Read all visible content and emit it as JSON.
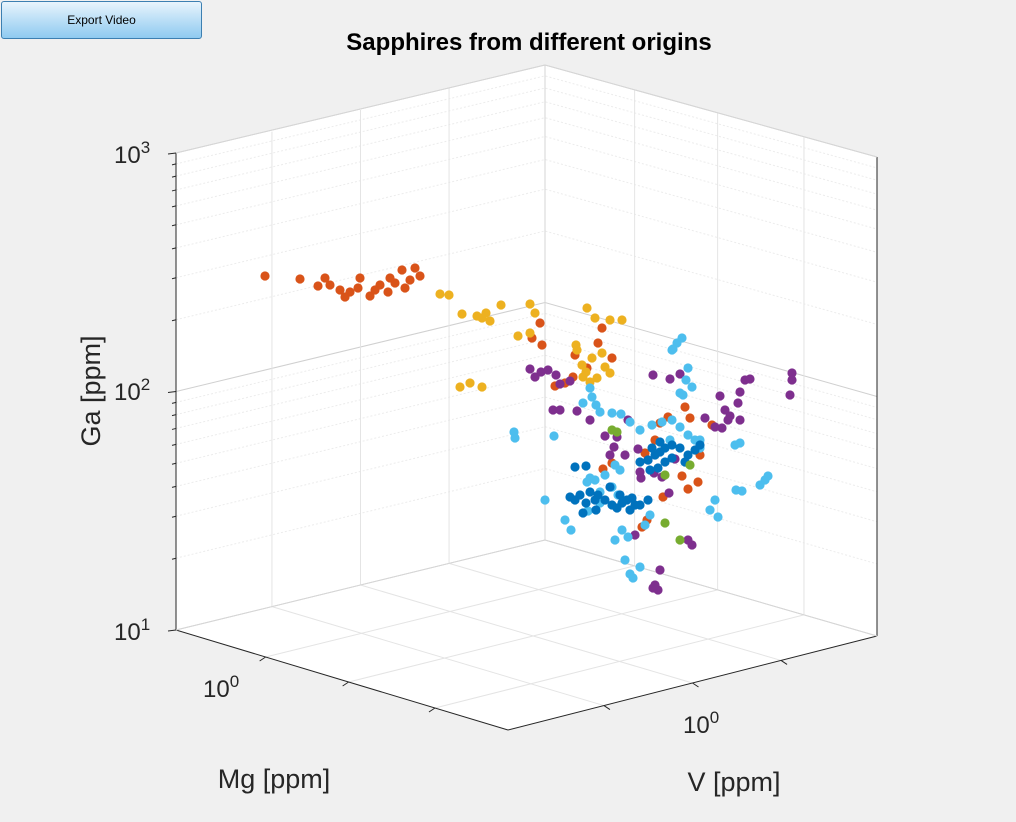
{
  "toolbar": {
    "export_label": "Export Video"
  },
  "chart_data": {
    "type": "scatter",
    "title": "Sapphires from different origins",
    "xlabel": "Mg [ppm]",
    "ylabel": "V [ppm]",
    "zlabel": "Ga [ppm]",
    "z_scale": "log",
    "zlim": [
      10,
      1000
    ],
    "z_ticks": [
      {
        "base": "10",
        "exp": "1"
      },
      {
        "base": "10",
        "exp": "2"
      },
      {
        "base": "10",
        "exp": "3"
      }
    ],
    "x_ticks": [
      {
        "base": "10",
        "exp": "0"
      }
    ],
    "y_ticks": [
      {
        "base": "10",
        "exp": "0"
      }
    ],
    "grid": true,
    "view": "3d-box",
    "series": [
      {
        "color": "#D95319",
        "points": [
          [
            265,
            276
          ],
          [
            300,
            279
          ],
          [
            318,
            286
          ],
          [
            340,
            290
          ],
          [
            358,
            288
          ],
          [
            380,
            285
          ],
          [
            395,
            283
          ],
          [
            410,
            280
          ],
          [
            420,
            276
          ],
          [
            330,
            285
          ],
          [
            350,
            292
          ],
          [
            370,
            296
          ],
          [
            388,
            292
          ],
          [
            405,
            288
          ],
          [
            390,
            278
          ],
          [
            360,
            278
          ],
          [
            375,
            290
          ],
          [
            345,
            297
          ],
          [
            325,
            278
          ],
          [
            402,
            270
          ],
          [
            415,
            268
          ],
          [
            540,
            323
          ],
          [
            542,
            345
          ],
          [
            532,
            338
          ],
          [
            575,
            355
          ],
          [
            565,
            383
          ],
          [
            555,
            386
          ],
          [
            598,
            343
          ],
          [
            587,
            368
          ],
          [
            573,
            377
          ],
          [
            602,
            328
          ],
          [
            612,
            358
          ],
          [
            668,
            417
          ],
          [
            660,
            423
          ],
          [
            685,
            407
          ],
          [
            690,
            418
          ],
          [
            645,
            453
          ],
          [
            612,
            463
          ],
          [
            603,
            469
          ],
          [
            642,
            527
          ],
          [
            647,
            520
          ],
          [
            663,
            497
          ],
          [
            688,
            489
          ],
          [
            682,
            476
          ],
          [
            698,
            482
          ],
          [
            655,
            440
          ],
          [
            700,
            455
          ],
          [
            712,
            425
          ]
        ]
      },
      {
        "color": "#EDB120",
        "points": [
          [
            440,
            294
          ],
          [
            449,
            295
          ],
          [
            462,
            314
          ],
          [
            477,
            316
          ],
          [
            486,
            313
          ],
          [
            490,
            321
          ],
          [
            482,
            318
          ],
          [
            501,
            305
          ],
          [
            530,
            304
          ],
          [
            535,
            313
          ],
          [
            518,
            336
          ],
          [
            530,
            333
          ],
          [
            460,
            387
          ],
          [
            482,
            387
          ],
          [
            470,
            383
          ],
          [
            587,
            308
          ],
          [
            595,
            318
          ],
          [
            610,
            320
          ],
          [
            622,
            320
          ],
          [
            576,
            345
          ],
          [
            586,
            372
          ],
          [
            592,
            358
          ],
          [
            602,
            353
          ],
          [
            582,
            365
          ],
          [
            605,
            367
          ],
          [
            610,
            373
          ],
          [
            597,
            378
          ],
          [
            590,
            382
          ],
          [
            583,
            377
          ],
          [
            577,
            350
          ]
        ]
      },
      {
        "color": "#7E2F8E",
        "points": [
          [
            530,
            369
          ],
          [
            541,
            372
          ],
          [
            548,
            370
          ],
          [
            535,
            377
          ],
          [
            556,
            375
          ],
          [
            560,
            384
          ],
          [
            570,
            381
          ],
          [
            553,
            410
          ],
          [
            560,
            410
          ],
          [
            577,
            411
          ],
          [
            590,
            420
          ],
          [
            605,
            436
          ],
          [
            610,
            455
          ],
          [
            614,
            447
          ],
          [
            625,
            455
          ],
          [
            628,
            420
          ],
          [
            617,
            437
          ],
          [
            638,
            449
          ],
          [
            648,
            460
          ],
          [
            654,
            473
          ],
          [
            662,
            477
          ],
          [
            641,
            478
          ],
          [
            640,
            472
          ],
          [
            669,
            493
          ],
          [
            675,
            459
          ],
          [
            653,
            375
          ],
          [
            670,
            379
          ],
          [
            680,
            374
          ],
          [
            720,
            396
          ],
          [
            725,
            410
          ],
          [
            730,
            416
          ],
          [
            738,
            403
          ],
          [
            740,
            392
          ],
          [
            745,
            380
          ],
          [
            750,
            379
          ],
          [
            728,
            420
          ],
          [
            715,
            427
          ],
          [
            705,
            418
          ],
          [
            722,
            428
          ],
          [
            740,
            420
          ],
          [
            790,
            395
          ],
          [
            792,
            373
          ],
          [
            792,
            380
          ],
          [
            660,
            570
          ],
          [
            653,
            588
          ],
          [
            658,
            590
          ],
          [
            655,
            585
          ],
          [
            692,
            545
          ],
          [
            688,
            540
          ],
          [
            635,
            535
          ]
        ]
      },
      {
        "color": "#4DBEEE",
        "points": [
          [
            514,
            432
          ],
          [
            515,
            438
          ],
          [
            554,
            436
          ],
          [
            545,
            500
          ],
          [
            565,
            520
          ],
          [
            571,
            530
          ],
          [
            587,
            482
          ],
          [
            595,
            480
          ],
          [
            605,
            475
          ],
          [
            612,
            487
          ],
          [
            618,
            495
          ],
          [
            600,
            503
          ],
          [
            588,
            511
          ],
          [
            590,
            388
          ],
          [
            583,
            403
          ],
          [
            592,
            397
          ],
          [
            596,
            405
          ],
          [
            600,
            412
          ],
          [
            612,
            413
          ],
          [
            621,
            414
          ],
          [
            630,
            422
          ],
          [
            640,
            430
          ],
          [
            652,
            425
          ],
          [
            662,
            422
          ],
          [
            672,
            420
          ],
          [
            680,
            427
          ],
          [
            688,
            435
          ],
          [
            695,
            440
          ],
          [
            700,
            448
          ],
          [
            670,
            440
          ],
          [
            680,
            393
          ],
          [
            683,
            395
          ],
          [
            688,
            368
          ],
          [
            686,
            380
          ],
          [
            692,
            387
          ],
          [
            672,
            350
          ],
          [
            677,
            343
          ],
          [
            673,
            349
          ],
          [
            682,
            338
          ],
          [
            700,
            440
          ],
          [
            715,
            500
          ],
          [
            710,
            510
          ],
          [
            718,
            517
          ],
          [
            736,
            490
          ],
          [
            742,
            491
          ],
          [
            760,
            485
          ],
          [
            765,
            480
          ],
          [
            768,
            476
          ],
          [
            740,
            443
          ],
          [
            735,
            445
          ],
          [
            615,
            540
          ],
          [
            628,
            537
          ],
          [
            622,
            530
          ],
          [
            645,
            525
          ],
          [
            650,
            515
          ],
          [
            625,
            560
          ],
          [
            630,
            574
          ],
          [
            633,
            578
          ],
          [
            640,
            567
          ],
          [
            590,
            478
          ],
          [
            600,
            492
          ],
          [
            620,
            470
          ],
          [
            615,
            465
          ]
        ]
      },
      {
        "color": "#0072BD",
        "points": [
          [
            570,
            497
          ],
          [
            580,
            495
          ],
          [
            590,
            492
          ],
          [
            598,
            495
          ],
          [
            610,
            487
          ],
          [
            620,
            495
          ],
          [
            627,
            500
          ],
          [
            635,
            505
          ],
          [
            632,
            498
          ],
          [
            605,
            500
          ],
          [
            596,
            510
          ],
          [
            583,
            513
          ],
          [
            575,
            500
          ],
          [
            586,
            503
          ],
          [
            595,
            500
          ],
          [
            612,
            505
          ],
          [
            617,
            508
          ],
          [
            622,
            503
          ],
          [
            630,
            510
          ],
          [
            640,
            505
          ],
          [
            648,
            500
          ],
          [
            575,
            467
          ],
          [
            586,
            466
          ],
          [
            648,
            460
          ],
          [
            655,
            455
          ],
          [
            660,
            452
          ],
          [
            665,
            448
          ],
          [
            672,
            445
          ],
          [
            680,
            448
          ],
          [
            688,
            455
          ],
          [
            695,
            450
          ],
          [
            700,
            445
          ],
          [
            685,
            462
          ],
          [
            672,
            458
          ],
          [
            665,
            462
          ],
          [
            658,
            468
          ],
          [
            650,
            470
          ],
          [
            640,
            462
          ],
          [
            652,
            448
          ],
          [
            660,
            442
          ]
        ]
      },
      {
        "color": "#77AC30",
        "points": [
          [
            612,
            430
          ],
          [
            617,
            432
          ],
          [
            665,
            523
          ],
          [
            680,
            540
          ],
          [
            665,
            475
          ],
          [
            690,
            465
          ]
        ]
      }
    ]
  }
}
